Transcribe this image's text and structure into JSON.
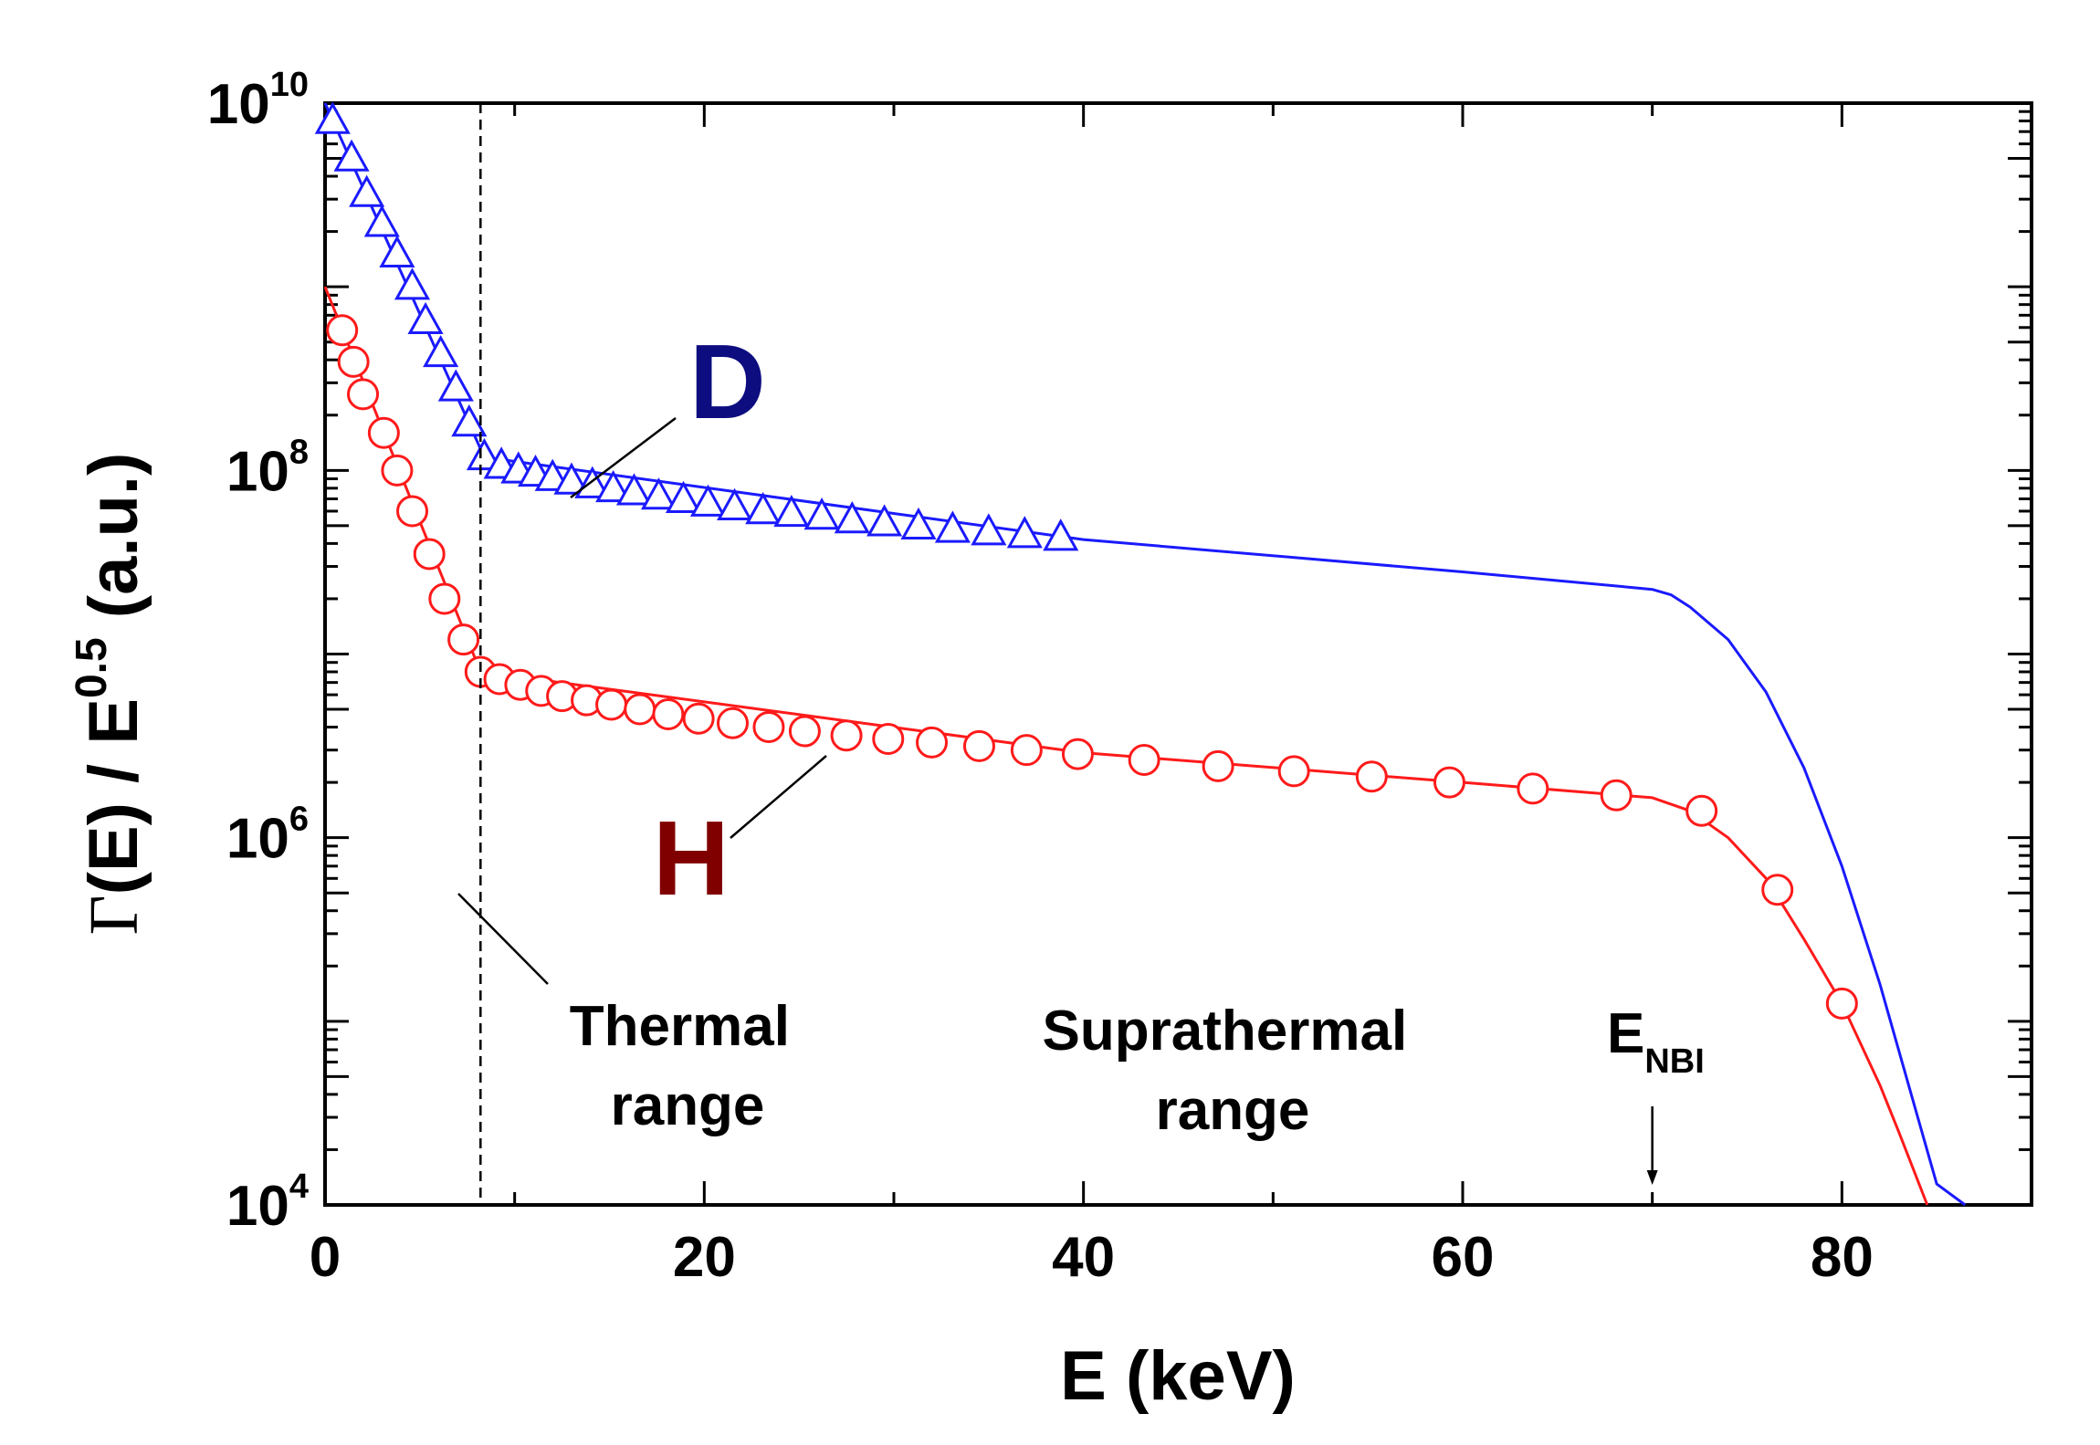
{
  "chart_data": {
    "type": "line",
    "xlabel": "E (keV)",
    "ylabel": {
      "prefix": "Γ",
      "middle": "(E) / E",
      "exponent": "0.5",
      "suffix": " (a.u.)"
    },
    "xlim": [
      0,
      90
    ],
    "ylim": [
      10000.0,
      10000000000.0
    ],
    "yscale": "log",
    "x_ticks": [
      0,
      20,
      40,
      60,
      80
    ],
    "x_tick_labels": [
      "0",
      "20",
      "40",
      "60",
      "80"
    ],
    "y_major_ticks": [
      {
        "value": 10000.0,
        "base": "10",
        "exp": "4"
      },
      {
        "value": 1000000.0,
        "base": "10",
        "exp": "6"
      },
      {
        "value": 100000000.0,
        "base": "10",
        "exp": "8"
      },
      {
        "value": 10000000000.0,
        "base": "10",
        "exp": "10"
      }
    ],
    "grid": false,
    "series": [
      {
        "name": "D",
        "color": "#1a1aff",
        "marker": "triangle",
        "markers": [
          [
            0.4,
            8000000000.0
          ],
          [
            1.4,
            5000000000.0
          ],
          [
            2.2,
            3200000000.0
          ],
          [
            3.0,
            2200000000.0
          ],
          [
            3.8,
            1500000000.0
          ],
          [
            4.6,
            1000000000.0
          ],
          [
            5.3,
            650000000.0
          ],
          [
            6.1,
            430000000.0
          ],
          [
            6.9,
            280000000.0
          ],
          [
            7.6,
            180000000.0
          ],
          [
            8.4,
            118000000.0
          ],
          [
            9.3,
            106000000.0
          ],
          [
            10.2,
            100000000.0
          ],
          [
            11.1,
            96000000.0
          ],
          [
            12.0,
            91000000.0
          ],
          [
            13.0,
            87000000.0
          ],
          [
            14.1,
            83000000.0
          ],
          [
            15.2,
            79000000.0
          ],
          [
            16.3,
            76000000.0
          ],
          [
            17.6,
            72000000.0
          ],
          [
            18.9,
            69000000.0
          ],
          [
            20.2,
            66000000.0
          ],
          [
            21.6,
            63000000.0
          ],
          [
            23.1,
            60000000.0
          ],
          [
            24.6,
            58000000.0
          ],
          [
            26.2,
            56000000.0
          ],
          [
            27.8,
            53500000.0
          ],
          [
            29.5,
            51500000.0
          ],
          [
            31.3,
            49500000.0
          ],
          [
            33.1,
            47500000.0
          ],
          [
            35.0,
            46000000.0
          ],
          [
            36.9,
            44500000.0
          ],
          [
            38.8,
            43000000.0
          ]
        ],
        "curve": [
          [
            0,
            10000000000.0
          ],
          [
            8.4,
            118000000.0
          ],
          [
            40,
            42000000.0
          ],
          [
            60,
            28000000.0
          ],
          [
            69,
            23000000.0
          ],
          [
            70,
            22500000.0
          ],
          [
            71,
            21000000.0
          ],
          [
            72,
            18000000.0
          ],
          [
            74,
            12000000.0
          ],
          [
            76,
            6200000.0
          ],
          [
            78,
            2400000.0
          ],
          [
            80,
            700000.0
          ],
          [
            82,
            160000.0
          ],
          [
            84,
            30000.0
          ],
          [
            85,
            13000.0
          ],
          [
            86.5,
            10000.0
          ]
        ]
      },
      {
        "name": "H",
        "color": "#ff1a1a",
        "marker": "circle",
        "markers": [
          [
            0.9,
            580000000.0
          ],
          [
            1.5,
            390000000.0
          ],
          [
            2.0,
            260000000.0
          ],
          [
            3.1,
            160000000.0
          ],
          [
            3.8,
            100000000.0
          ],
          [
            4.6,
            60000000.0
          ],
          [
            5.5,
            35000000.0
          ],
          [
            6.3,
            20000000.0
          ],
          [
            7.3,
            12000000.0
          ],
          [
            8.2,
            8000000.0
          ],
          [
            9.2,
            7300000.0
          ],
          [
            10.3,
            6800000.0
          ],
          [
            11.4,
            6300000.0
          ],
          [
            12.5,
            5900000.0
          ],
          [
            13.8,
            5600000.0
          ],
          [
            15.1,
            5300000.0
          ],
          [
            16.6,
            5000000.0
          ],
          [
            18.1,
            4700000.0
          ],
          [
            19.7,
            4450000.0
          ],
          [
            21.5,
            4200000.0
          ],
          [
            23.4,
            4000000.0
          ],
          [
            25.3,
            3800000.0
          ],
          [
            27.5,
            3600000.0
          ],
          [
            29.7,
            3450000.0
          ],
          [
            32.0,
            3300000.0
          ],
          [
            34.5,
            3150000.0
          ],
          [
            37.0,
            3000000.0
          ],
          [
            39.7,
            2850000.0
          ],
          [
            43.2,
            2650000.0
          ],
          [
            47.1,
            2450000.0
          ],
          [
            51.1,
            2300000.0
          ],
          [
            55.2,
            2150000.0
          ],
          [
            59.3,
            2000000.0
          ],
          [
            63.7,
            1850000.0
          ],
          [
            68.1,
            1700000.0
          ],
          [
            72.6,
            1400000.0
          ],
          [
            76.6,
            520000.0
          ],
          [
            80.0,
            125000.0
          ]
        ],
        "curve": [
          [
            0,
            1000000000.0
          ],
          [
            8.2,
            8000000.0
          ],
          [
            40,
            2900000.0
          ],
          [
            60,
            2000000.0
          ],
          [
            70,
            1650000.0
          ],
          [
            72,
            1400000.0
          ],
          [
            74,
            1000000.0
          ],
          [
            76,
            600000.0
          ],
          [
            78,
            280000.0
          ],
          [
            80,
            125000.0
          ],
          [
            82,
            45000.0
          ],
          [
            83,
            25000.0
          ],
          [
            84.5,
            10000.0
          ]
        ]
      }
    ],
    "annotations": {
      "series_label_d": "D",
      "series_label_h": "H",
      "thermal_line1": "Thermal",
      "thermal_line2": "range",
      "suprathermal_line1": "Suprathermal",
      "suprathermal_line2": "range",
      "enbi_main": "E",
      "enbi_sub": "NBI",
      "thermal_boundary_x": 8.2,
      "enbi_x": 70
    },
    "colors": {
      "d_label": "#0d0d80",
      "h_label": "#800000",
      "axes": "#000000"
    }
  }
}
